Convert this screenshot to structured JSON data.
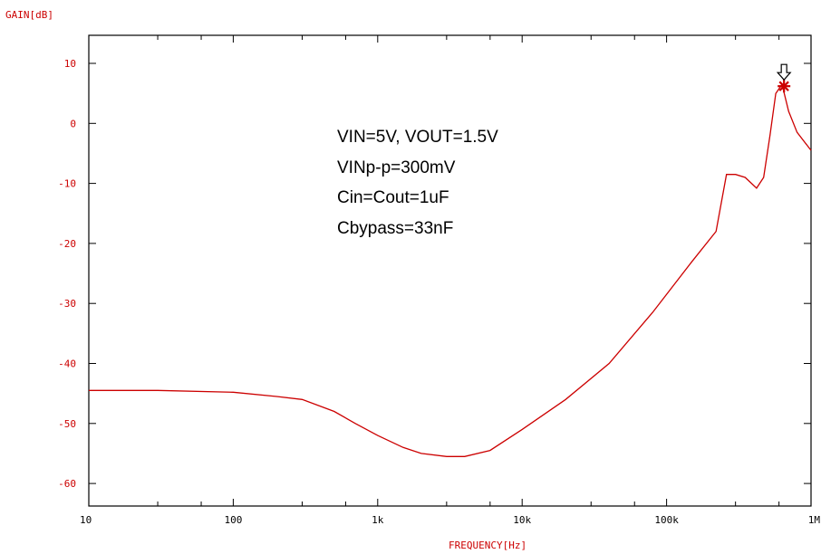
{
  "chart_data": {
    "type": "line",
    "title": "",
    "xlabel": "FREQUENCY[Hz]",
    "ylabel": "GAIN[dB]",
    "x_scale": "log",
    "xlim": [
      10,
      1000000
    ],
    "ylim": [
      -64,
      14
    ],
    "x_ticks": [
      {
        "value": 10,
        "label": "10"
      },
      {
        "value": 100,
        "label": "100"
      },
      {
        "value": 1000,
        "label": "1k"
      },
      {
        "value": 10000,
        "label": "10k"
      },
      {
        "value": 100000,
        "label": "100k"
      },
      {
        "value": 1000000,
        "label": "1M"
      }
    ],
    "y_ticks": [
      {
        "value": 10,
        "label": "10"
      },
      {
        "value": 0,
        "label": "0"
      },
      {
        "value": -10,
        "label": "-10"
      },
      {
        "value": -20,
        "label": "-20"
      },
      {
        "value": -30,
        "label": "-30"
      },
      {
        "value": -40,
        "label": "-40"
      },
      {
        "value": -50,
        "label": "-50"
      },
      {
        "value": -60,
        "label": "-60"
      }
    ],
    "grid": false,
    "series_color": "#cc0000",
    "series": [
      {
        "x": [
          10,
          30,
          100,
          200,
          300,
          500,
          700,
          1000,
          1500,
          2000,
          3000,
          4000,
          6000,
          10000,
          20000,
          40000,
          80000,
          150000,
          220000,
          260000,
          300000,
          350000,
          420000,
          470000,
          520000,
          570000,
          630000,
          700000,
          800000,
          1000000
        ],
        "y": [
          -44.5,
          -44.5,
          -44.8,
          -45.5,
          -46,
          -48,
          -50,
          -52,
          -54,
          -55,
          -55.5,
          -55.5,
          -54.5,
          -51,
          -46,
          -40,
          -31.5,
          -23,
          -18,
          -8.5,
          -8.5,
          -9,
          -10.8,
          -9,
          -2,
          5,
          6.5,
          2,
          -1.5,
          -4.5
        ]
      }
    ],
    "marker": {
      "x": 650000,
      "y": 6.2
    },
    "annotations": [
      "VIN=5V, VOUT=1.5V",
      "VINp-p=300mV",
      "Cin=Cout=1uF",
      "Cbypass=33nF"
    ]
  }
}
